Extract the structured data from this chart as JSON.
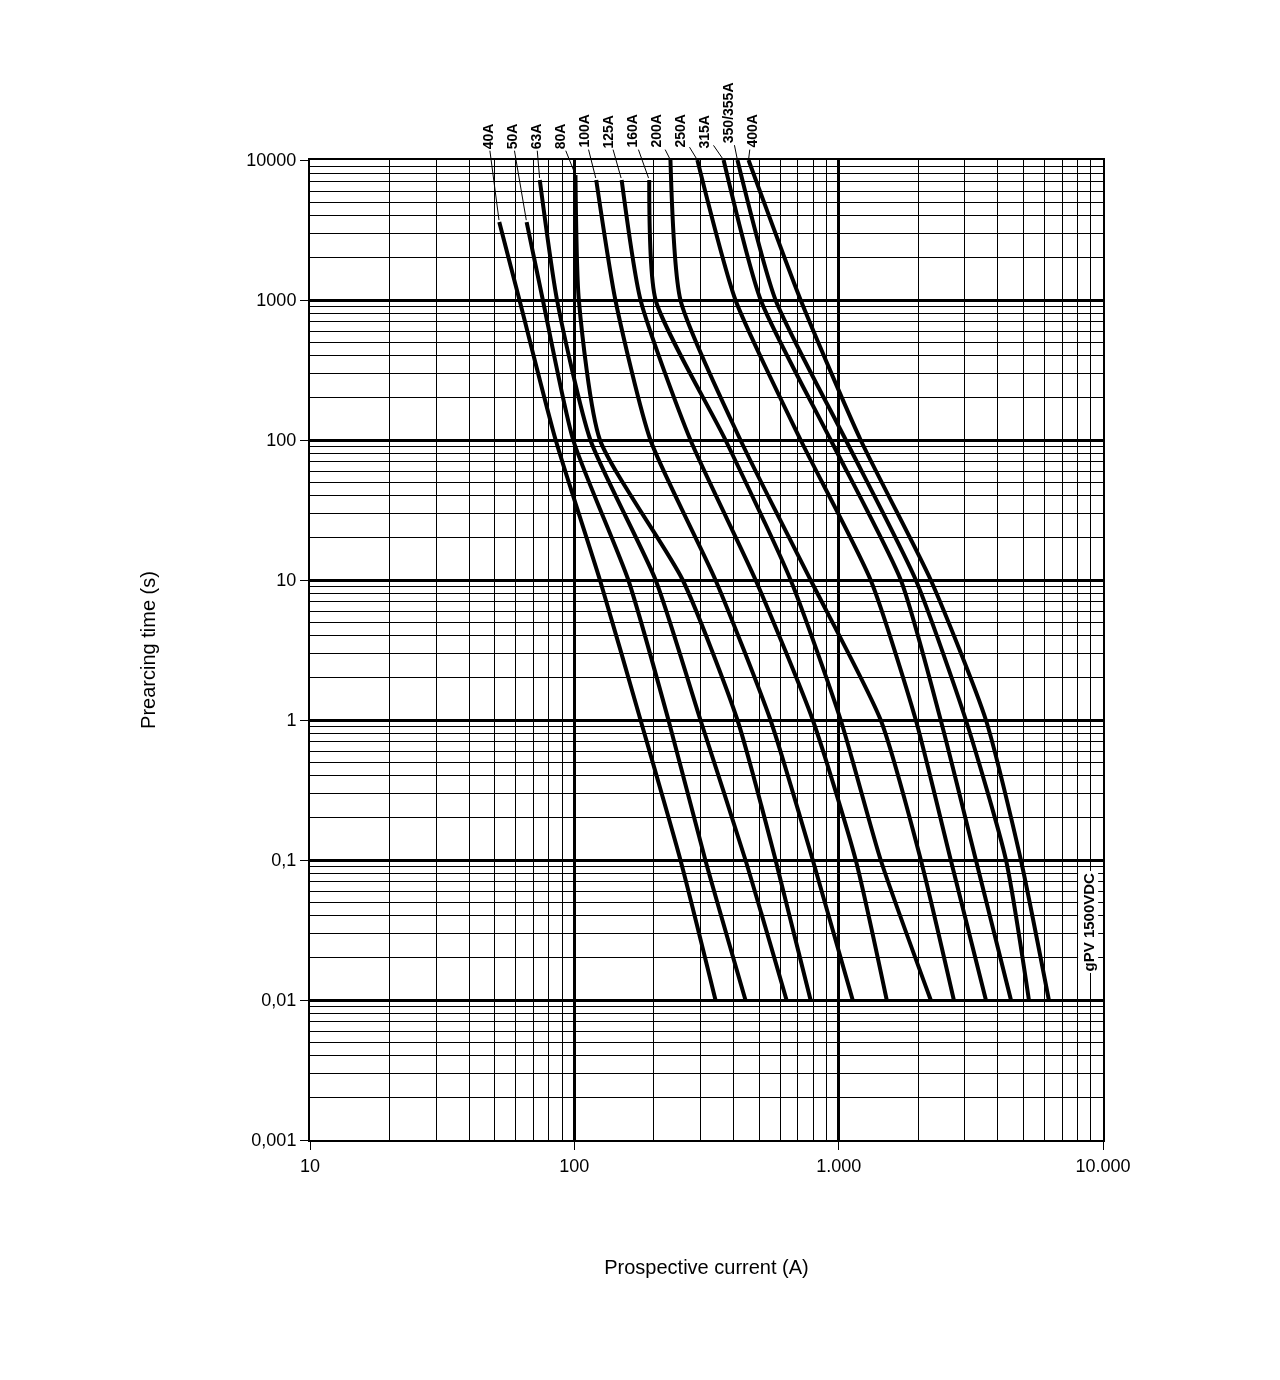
{
  "chart_data": {
    "type": "line",
    "xlabel": "Prospective current (A)",
    "ylabel": "Prearcing time (s)",
    "log": "xy",
    "grid": true,
    "legend": false,
    "marker": "none",
    "line_style": "solid",
    "xlim": [
      10,
      10000
    ],
    "ylim": [
      0.001,
      10000
    ],
    "xticks": [
      10,
      100,
      {
        "value": 1000,
        "label": "1.000"
      },
      {
        "value": 10000,
        "label": "10.000"
      }
    ],
    "yticks": [
      {
        "value": 0.001,
        "label": "0,001"
      },
      {
        "value": 0.01,
        "label": "0,01"
      },
      {
        "value": 0.1,
        "label": "0,1"
      },
      1,
      10,
      100,
      1000,
      10000
    ],
    "annotations": [
      "gPV 1500VDC"
    ],
    "series": [
      {
        "name": "40A",
        "color": "#000000",
        "x": [
          52,
          62,
          85,
          125,
          178,
          252,
          342
        ],
        "values": [
          3600,
          1000,
          100,
          10,
          1,
          0.1,
          0.01
        ]
      },
      {
        "name": "50A",
        "color": "#000000",
        "x": [
          66,
          76,
          99,
          160,
          227,
          313,
          444
        ],
        "values": [
          3600,
          1000,
          100,
          10,
          1,
          0.1,
          0.01
        ]
      },
      {
        "name": "63A",
        "color": "#000000",
        "x": [
          74,
          86,
          115,
          203,
          300,
          444,
          635
        ],
        "values": [
          7200,
          1000,
          100,
          10,
          1,
          0.1,
          0.01
        ]
      },
      {
        "name": "80A",
        "color": "#000000",
        "x": [
          101,
          104,
          125,
          257,
          414,
          577,
          783
        ],
        "values": [
          7800,
          1000,
          100,
          10,
          1,
          0.1,
          0.01
        ]
      },
      {
        "name": "100A",
        "color": "#000000",
        "x": [
          121,
          143,
          194,
          342,
          552,
          798,
          1130
        ],
        "values": [
          7200,
          1000,
          100,
          10,
          1,
          0.1,
          0.01
        ]
      },
      {
        "name": "125A",
        "color": "#000000",
        "x": [
          151,
          178,
          275,
          485,
          798,
          1160,
          1520
        ],
        "values": [
          7200,
          1000,
          100,
          10,
          1,
          0.1,
          0.01
        ]
      },
      {
        "name": "160A",
        "color": "#000000",
        "x": [
          192,
          203,
          373,
          658,
          1018,
          1442,
          2230
        ],
        "values": [
          7200,
          1000,
          100,
          10,
          1,
          0.1,
          0.01
        ]
      },
      {
        "name": "200A",
        "color": "#000000",
        "x": [
          231,
          252,
          425,
          783,
          1442,
          2046,
          2727
        ],
        "values": [
          10000,
          1000,
          100,
          10,
          1,
          0.1,
          0.01
        ]
      },
      {
        "name": "250A",
        "color": "#000000",
        "x": [
          292,
          407,
          718,
          1321,
          1958,
          2655,
          3606
        ],
        "values": [
          10000,
          1000,
          100,
          10,
          1,
          0.1,
          0.01
        ]
      },
      {
        "name": "315A",
        "color": "#000000",
        "x": [
          367,
          507,
          933,
          1718,
          2432,
          3304,
          4485
        ],
        "values": [
          10000,
          1000,
          100,
          10,
          1,
          0.1,
          0.01
        ]
      },
      {
        "name": "350/355A",
        "color": "#000000",
        "x": [
          414,
          577,
          1064,
          1958,
          3028,
          4295,
          5245
        ],
        "values": [
          10000,
          1000,
          100,
          10,
          1,
          0.1,
          0.01
        ]
      },
      {
        "name": "400A",
        "color": "#000000",
        "x": [
          456,
          718,
          1211,
          2230,
          3606,
          4890,
          6240
        ],
        "values": [
          10000,
          1000,
          100,
          10,
          1,
          0.1,
          0.01
        ]
      }
    ]
  }
}
